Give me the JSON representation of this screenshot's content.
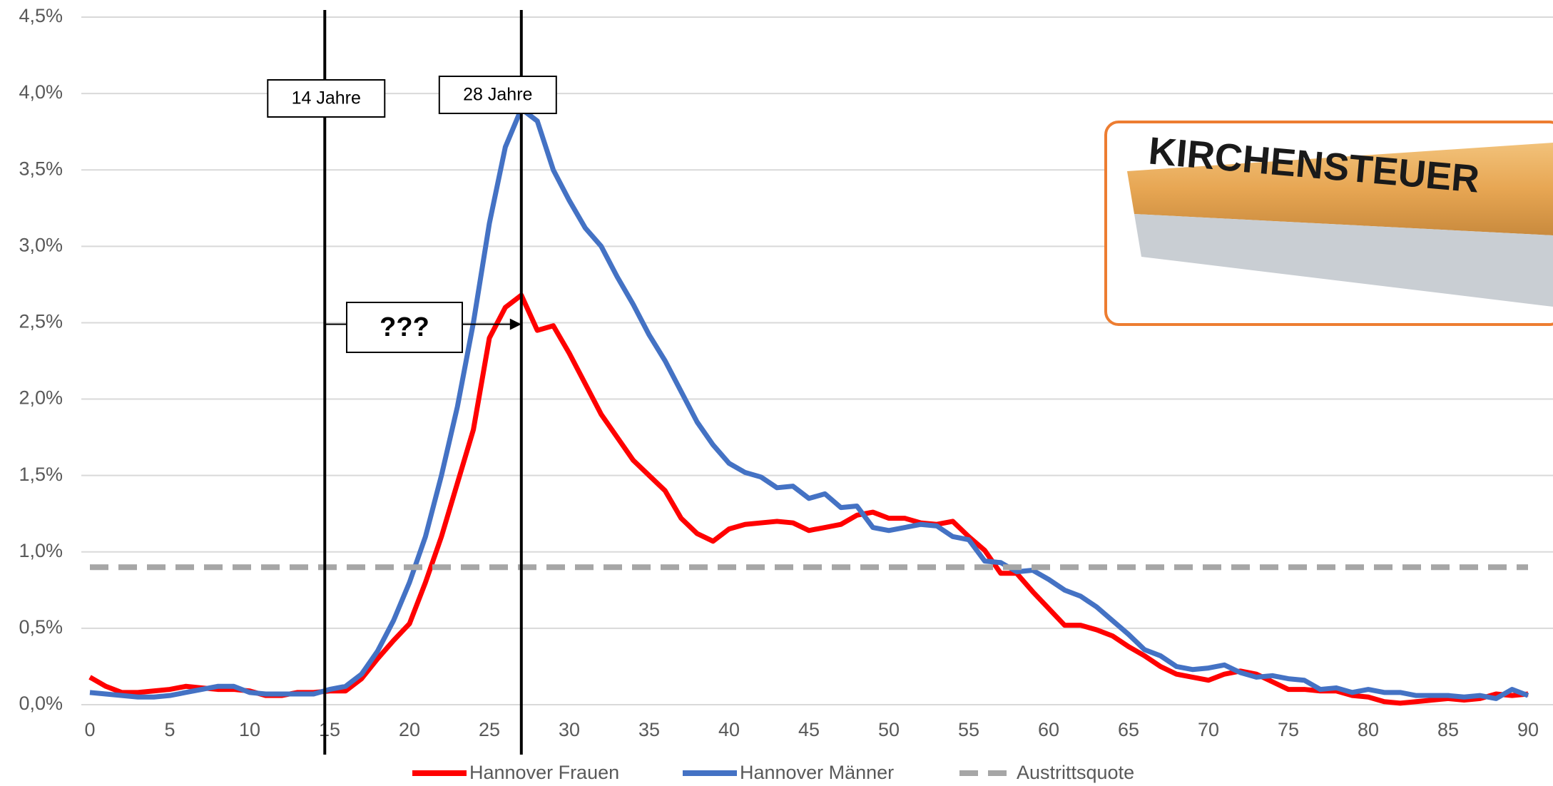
{
  "chart_data": {
    "type": "line",
    "x": [
      0,
      1,
      2,
      3,
      4,
      5,
      6,
      7,
      8,
      9,
      10,
      11,
      12,
      13,
      14,
      15,
      16,
      17,
      18,
      19,
      20,
      21,
      22,
      23,
      24,
      25,
      26,
      27,
      28,
      29,
      30,
      31,
      32,
      33,
      34,
      35,
      36,
      37,
      38,
      39,
      40,
      41,
      42,
      43,
      44,
      45,
      46,
      47,
      48,
      49,
      50,
      51,
      52,
      53,
      54,
      55,
      56,
      57,
      58,
      59,
      60,
      61,
      62,
      63,
      64,
      65,
      66,
      67,
      68,
      69,
      70,
      71,
      72,
      73,
      74,
      75,
      76,
      77,
      78,
      79,
      80,
      81,
      82,
      83,
      84,
      85,
      86,
      87,
      88,
      89,
      90
    ],
    "series": [
      {
        "name": "Hannover Frauen",
        "color": "#ff0000",
        "values": [
          0.18,
          0.12,
          0.08,
          0.08,
          0.09,
          0.1,
          0.12,
          0.11,
          0.1,
          0.1,
          0.09,
          0.06,
          0.06,
          0.08,
          0.08,
          0.09,
          0.09,
          0.17,
          0.3,
          0.42,
          0.53,
          0.8,
          1.1,
          1.45,
          1.8,
          2.4,
          2.6,
          2.68,
          2.45,
          2.48,
          2.3,
          2.1,
          1.9,
          1.75,
          1.6,
          1.5,
          1.4,
          1.22,
          1.12,
          1.07,
          1.15,
          1.18,
          1.19,
          1.2,
          1.19,
          1.14,
          1.16,
          1.18,
          1.24,
          1.26,
          1.22,
          1.22,
          1.19,
          1.18,
          1.2,
          1.1,
          1.01,
          0.86,
          0.86,
          0.74,
          0.63,
          0.52,
          0.52,
          0.49,
          0.45,
          0.38,
          0.32,
          0.25,
          0.2,
          0.18,
          0.16,
          0.2,
          0.22,
          0.2,
          0.15,
          0.1,
          0.1,
          0.09,
          0.09,
          0.06,
          0.05,
          0.02,
          0.01,
          0.02,
          0.03,
          0.04,
          0.03,
          0.04,
          0.07,
          0.06,
          0.07
        ]
      },
      {
        "name": "Hannover Männer",
        "color": "#4472c4",
        "values": [
          0.08,
          0.07,
          0.06,
          0.05,
          0.05,
          0.06,
          0.08,
          0.1,
          0.12,
          0.12,
          0.08,
          0.07,
          0.07,
          0.07,
          0.07,
          0.1,
          0.12,
          0.2,
          0.35,
          0.55,
          0.8,
          1.1,
          1.5,
          1.95,
          2.5,
          3.15,
          3.65,
          3.9,
          3.82,
          3.5,
          3.3,
          3.12,
          3.0,
          2.8,
          2.62,
          2.42,
          2.25,
          2.05,
          1.85,
          1.7,
          1.58,
          1.52,
          1.49,
          1.42,
          1.43,
          1.35,
          1.38,
          1.29,
          1.3,
          1.16,
          1.14,
          1.16,
          1.18,
          1.17,
          1.1,
          1.08,
          0.94,
          0.93,
          0.87,
          0.88,
          0.82,
          0.75,
          0.71,
          0.64,
          0.55,
          0.46,
          0.36,
          0.32,
          0.25,
          0.23,
          0.24,
          0.26,
          0.21,
          0.18,
          0.19,
          0.17,
          0.16,
          0.1,
          0.11,
          0.08,
          0.1,
          0.08,
          0.08,
          0.06,
          0.06,
          0.06,
          0.05,
          0.06,
          0.04,
          0.1,
          0.06
        ]
      },
      {
        "name": "Austrittsquote",
        "color": "#a6a6a6",
        "dashed": true,
        "x": [
          0,
          90
        ],
        "values": [
          0.9,
          0.9
        ]
      }
    ],
    "xlim": [
      0,
      90
    ],
    "xticks": [
      0,
      5,
      10,
      15,
      20,
      25,
      30,
      35,
      40,
      45,
      50,
      55,
      60,
      65,
      70,
      75,
      80,
      85,
      90
    ],
    "ylim": [
      0,
      4.5
    ],
    "yticks": [
      {
        "value": 0,
        "label": "0,0%"
      },
      {
        "value": 0.5,
        "label": "0,5%"
      },
      {
        "value": 1,
        "label": "1,0%"
      },
      {
        "value": 1.5,
        "label": "1,5%"
      },
      {
        "value": 2,
        "label": "2,0%"
      },
      {
        "value": 2.5,
        "label": "2,5%"
      },
      {
        "value": 3,
        "label": "3,0%"
      },
      {
        "value": 3.5,
        "label": "3,5%"
      },
      {
        "value": 4,
        "label": "4,0%"
      },
      {
        "value": 4.5,
        "label": "4,5%"
      }
    ],
    "grid": true,
    "legend": "bottom",
    "annotations": [
      {
        "label": "14 Jahre",
        "x": 14.7
      },
      {
        "label": "28 Jahre",
        "x": 27
      },
      {
        "label": "???",
        "x_start": 14.7,
        "x_end": 27,
        "y": 2.49
      }
    ],
    "image_text": "KIRCHENSTEUER"
  }
}
